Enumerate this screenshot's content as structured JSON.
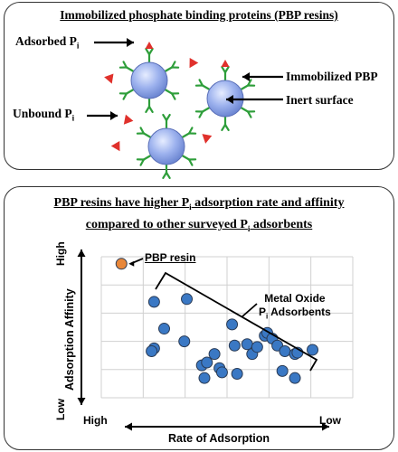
{
  "top_panel": {
    "title": "Immobilized phosphate binding proteins (PBP resins)",
    "labels": {
      "adsorbed": "Adsorbed P",
      "unbound": "Unbound P",
      "subscript": "i",
      "immobilized_pbp": "Immobilized PBP",
      "inert_surface": "Inert surface"
    },
    "colors": {
      "bead": "#8fa5e6",
      "antibody": "#2e9e3a",
      "phosphate": "#e0312c"
    }
  },
  "bottom_panel": {
    "title_line1_a": "PBP resins have higher P",
    "title_line1_sub": "i",
    "title_line1_b": " adsorption rate and affinity",
    "title_line2_a": "compared to other surveyed P",
    "title_line2_sub": "i",
    "title_line2_b": " adsorbents"
  },
  "chart_data": {
    "type": "scatter",
    "xlabel": "Rate of Adsorption",
    "ylabel": "Adsorption Affinity",
    "x_tick_left": "High",
    "x_tick_right": "Low",
    "y_tick_top": "High",
    "y_tick_bottom": "Low",
    "grid": true,
    "annotations": {
      "pbp_label": "PBP resin",
      "group_label_line1": "Metal Oxide",
      "group_label_line2_a": "P",
      "group_label_line2_sub": "i",
      "group_label_line2_b": " Adsorbents"
    },
    "series": [
      {
        "name": "PBP resin",
        "color": "#e8873a",
        "points": [
          [
            0.08,
            0.95
          ]
        ]
      },
      {
        "name": "Metal Oxide Pi Adsorbents",
        "color": "#3a78c4",
        "points": [
          [
            0.21,
            0.68
          ],
          [
            0.34,
            0.7
          ],
          [
            0.25,
            0.49
          ],
          [
            0.21,
            0.35
          ],
          [
            0.2,
            0.33
          ],
          [
            0.33,
            0.4
          ],
          [
            0.52,
            0.52
          ],
          [
            0.4,
            0.23
          ],
          [
            0.42,
            0.25
          ],
          [
            0.41,
            0.14
          ],
          [
            0.45,
            0.31
          ],
          [
            0.47,
            0.21
          ],
          [
            0.48,
            0.18
          ],
          [
            0.53,
            0.37
          ],
          [
            0.54,
            0.17
          ],
          [
            0.58,
            0.38
          ],
          [
            0.6,
            0.31
          ],
          [
            0.62,
            0.36
          ],
          [
            0.65,
            0.44
          ],
          [
            0.66,
            0.46
          ],
          [
            0.68,
            0.42
          ],
          [
            0.7,
            0.37
          ],
          [
            0.73,
            0.33
          ],
          [
            0.72,
            0.19
          ],
          [
            0.77,
            0.31
          ],
          [
            0.78,
            0.32
          ],
          [
            0.77,
            0.14
          ],
          [
            0.84,
            0.34
          ]
        ]
      }
    ]
  }
}
